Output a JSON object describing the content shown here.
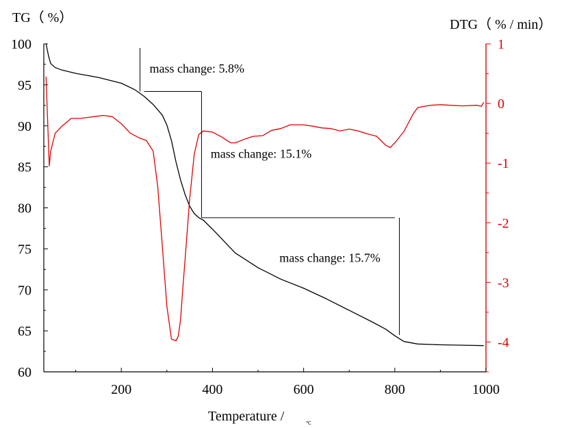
{
  "chart_data": {
    "type": "line",
    "xlabel": "Temperature /",
    "xlabel_unit_glyph": "℃",
    "ylabel_left": "TG（ %）",
    "ylabel_right": "DTG（ % / min）",
    "xlim": [
      30,
      1000
    ],
    "ylim_left": [
      60,
      100
    ],
    "ylim_right": [
      -4.5,
      1
    ],
    "x_ticks": [
      200,
      400,
      600,
      800,
      1000
    ],
    "y_ticks_left": [
      60,
      65,
      70,
      75,
      80,
      85,
      90,
      95,
      100
    ],
    "y_ticks_right": [
      -4,
      -3,
      -2,
      -1,
      0,
      1
    ],
    "colors": {
      "tg": "#000000",
      "dtg": "#e00000"
    },
    "series": [
      {
        "axis": "left",
        "x": [
          35,
          40,
          45,
          55,
          70,
          100,
          150,
          200,
          230,
          250,
          270,
          290,
          300,
          310,
          320,
          330,
          340,
          350,
          360,
          370,
          380,
          400,
          450,
          500,
          550,
          600,
          650,
          700,
          750,
          780,
          800,
          820,
          850,
          900,
          950,
          995
        ],
        "y": [
          100,
          98.6,
          97.6,
          97.1,
          96.8,
          96.4,
          95.9,
          95.2,
          94.4,
          93.6,
          92.6,
          91.3,
          90.1,
          88.2,
          85.6,
          83.4,
          81.6,
          80.2,
          79.3,
          78.8,
          78.5,
          77.4,
          74.5,
          72.7,
          71.3,
          70.2,
          68.9,
          67.5,
          66.1,
          65.2,
          64.4,
          63.7,
          63.4,
          63.3,
          63.25,
          63.2
        ]
      },
      {
        "axis": "right",
        "x": [
          35,
          38,
          42,
          45,
          55,
          70,
          90,
          110,
          140,
          160,
          180,
          200,
          220,
          240,
          255,
          270,
          280,
          290,
          300,
          310,
          320,
          325,
          330,
          335,
          340,
          350,
          360,
          370,
          380,
          400,
          420,
          440,
          450,
          470,
          490,
          510,
          530,
          550,
          570,
          600,
          620,
          640,
          660,
          680,
          700,
          720,
          740,
          760,
          780,
          790,
          800,
          820,
          840,
          850,
          870,
          880,
          900,
          920,
          950,
          980,
          990,
          995
        ],
        "y": [
          0.45,
          -0.2,
          -1.05,
          -0.8,
          -0.5,
          -0.38,
          -0.25,
          -0.25,
          -0.22,
          -0.2,
          -0.22,
          -0.34,
          -0.5,
          -0.58,
          -0.62,
          -0.8,
          -1.4,
          -2.4,
          -3.4,
          -3.95,
          -3.98,
          -3.9,
          -3.62,
          -3.1,
          -2.6,
          -1.6,
          -0.85,
          -0.52,
          -0.46,
          -0.48,
          -0.56,
          -0.66,
          -0.66,
          -0.6,
          -0.55,
          -0.54,
          -0.45,
          -0.42,
          -0.36,
          -0.36,
          -0.38,
          -0.41,
          -0.42,
          -0.46,
          -0.43,
          -0.46,
          -0.51,
          -0.55,
          -0.7,
          -0.74,
          -0.66,
          -0.47,
          -0.18,
          -0.07,
          -0.04,
          -0.03,
          -0.02,
          -0.03,
          -0.04,
          -0.03,
          -0.05,
          0.02
        ]
      }
    ],
    "annotations": [
      {
        "text": "mass change: 5.8%",
        "x": 262,
        "y": 96.5
      },
      {
        "text": "mass change: 15.1%",
        "x": 396,
        "y": 86.1
      },
      {
        "text": "mass change: 15.7%",
        "x": 547,
        "y": 73.4
      }
    ],
    "step_lines": [
      {
        "from": [
          241,
          99.5
        ],
        "to": [
          241,
          94.2
        ]
      },
      {
        "from": [
          250,
          94.2
        ],
        "to": [
          376,
          94.2
        ]
      },
      {
        "from": [
          376,
          94.2
        ],
        "to": [
          376,
          78.8
        ]
      },
      {
        "from": [
          376,
          78.8
        ],
        "to": [
          800,
          78.8
        ]
      },
      {
        "from": [
          810,
          78.8
        ],
        "to": [
          810,
          64.5
        ]
      }
    ]
  }
}
